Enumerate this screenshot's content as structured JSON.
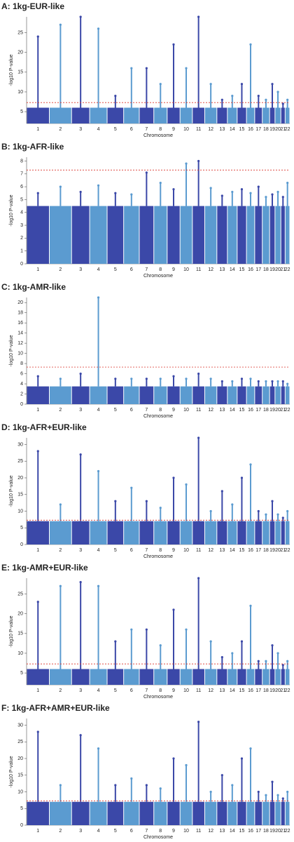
{
  "chart_data": [
    {
      "type": "manhattan",
      "title": "A: 1kg-EUR-like",
      "x_label": "Chromosome",
      "y_label": "-log10 P-value",
      "categories": [
        "1",
        "2",
        "3",
        "4",
        "5",
        "6",
        "7",
        "8",
        "9",
        "10",
        "11",
        "12",
        "13",
        "14",
        "15",
        "16",
        "17",
        "18",
        "19",
        "20",
        "21",
        "22"
      ],
      "bulk": [
        6,
        6,
        6,
        6,
        6,
        6,
        6,
        6,
        6,
        6,
        6,
        6,
        6,
        6,
        6,
        6,
        6,
        6,
        6,
        6,
        6,
        6
      ],
      "peaks": [
        24,
        27,
        29,
        26,
        9,
        16,
        16,
        12,
        22,
        16,
        29,
        12,
        8,
        9,
        12,
        22,
        9,
        8,
        12,
        10,
        7,
        8
      ],
      "ylim": [
        2,
        29
      ],
      "yticks": [
        5,
        10,
        15,
        20,
        25
      ],
      "threshold": 7.3,
      "colors": [
        "#3b48a8",
        "#5b9bd0"
      ],
      "threshold_color": "#d9342b"
    },
    {
      "type": "manhattan",
      "title": "B: 1kg-AFR-like",
      "x_label": "Chromosome",
      "y_label": "-log10 P-value",
      "categories": [
        "1",
        "2",
        "3",
        "4",
        "5",
        "6",
        "7",
        "8",
        "9",
        "10",
        "11",
        "12",
        "13",
        "14",
        "15",
        "16",
        "17",
        "18",
        "19",
        "20",
        "21",
        "22"
      ],
      "bulk": [
        4.5,
        4.5,
        4.5,
        4.5,
        4.5,
        4.5,
        4.5,
        4.5,
        4.5,
        4.5,
        4.5,
        4.5,
        4.5,
        4.5,
        4.5,
        4.5,
        4.5,
        4.5,
        4.5,
        4.5,
        4.5,
        4.5
      ],
      "peaks": [
        5.5,
        6.0,
        5.6,
        6.1,
        5.5,
        5.4,
        7.1,
        6.3,
        5.8,
        7.8,
        8.0,
        5.9,
        5.3,
        5.6,
        5.8,
        5.5,
        6.0,
        5.2,
        5.4,
        5.6,
        5.2,
        6.3
      ],
      "ylim": [
        0,
        8.3
      ],
      "yticks": [
        0,
        1,
        2,
        3,
        4,
        5,
        6,
        7,
        8
      ],
      "threshold": 7.3,
      "colors": [
        "#3b48a8",
        "#5b9bd0"
      ],
      "threshold_color": "#d9342b"
    },
    {
      "type": "manhattan",
      "title": "C: 1kg-AMR-like",
      "x_label": "Chromosome",
      "y_label": "-log10 P-value",
      "categories": [
        "1",
        "2",
        "3",
        "4",
        "5",
        "6",
        "7",
        "8",
        "9",
        "10",
        "11",
        "12",
        "13",
        "14",
        "15",
        "16",
        "17",
        "18",
        "19",
        "20",
        "21",
        "22"
      ],
      "bulk": [
        3.5,
        3.5,
        3.5,
        3.5,
        3.5,
        3.5,
        3.5,
        3.5,
        3.5,
        3.5,
        3.5,
        3.5,
        3.5,
        3.5,
        3.5,
        3.5,
        3.5,
        3.5,
        3.5,
        3.5,
        3.5,
        3.5
      ],
      "peaks": [
        5.5,
        5,
        6,
        21,
        5,
        5,
        5,
        5,
        5.5,
        5,
        6,
        5,
        4.5,
        4.5,
        5,
        5,
        4.5,
        4.5,
        4.5,
        4.5,
        4.5,
        4
      ],
      "ylim": [
        0,
        21
      ],
      "yticks": [
        0,
        2,
        4,
        6,
        8,
        10,
        12,
        14,
        16,
        18,
        20
      ],
      "threshold": 7.3,
      "colors": [
        "#3b48a8",
        "#5b9bd0"
      ],
      "threshold_color": "#d9342b"
    },
    {
      "type": "manhattan",
      "title": "D: 1kg-AFR+EUR-like",
      "x_label": "Chromosome",
      "y_label": "-log10 P-value",
      "categories": [
        "1",
        "2",
        "3",
        "4",
        "5",
        "6",
        "7",
        "8",
        "9",
        "10",
        "11",
        "12",
        "13",
        "14",
        "15",
        "16",
        "17",
        "18",
        "19",
        "20",
        "21",
        "22"
      ],
      "bulk": [
        7,
        7,
        7,
        7,
        7,
        7,
        7,
        7,
        7,
        7,
        7,
        7,
        7,
        7,
        7,
        7,
        7,
        7,
        7,
        7,
        7,
        7
      ],
      "peaks": [
        28,
        12,
        27,
        22,
        13,
        17,
        13,
        11,
        20,
        18,
        32,
        10,
        16,
        12,
        20,
        24,
        10,
        9,
        13,
        9,
        8,
        10
      ],
      "ylim": [
        0,
        32
      ],
      "yticks": [
        0,
        5,
        10,
        15,
        20,
        25,
        30
      ],
      "threshold": 7.3,
      "colors": [
        "#3b48a8",
        "#5b9bd0"
      ],
      "threshold_color": "#d9342b"
    },
    {
      "type": "manhattan",
      "title": "E: 1kg-AMR+EUR-like",
      "x_label": "Chromosome",
      "y_label": "-log10 P-value",
      "categories": [
        "1",
        "2",
        "3",
        "4",
        "5",
        "6",
        "7",
        "8",
        "9",
        "10",
        "11",
        "12",
        "13",
        "14",
        "15",
        "16",
        "17",
        "18",
        "19",
        "20",
        "21",
        "22"
      ],
      "bulk": [
        6,
        6,
        6,
        6,
        6,
        6,
        6,
        6,
        6,
        6,
        6,
        6,
        6,
        6,
        6,
        6,
        6,
        6,
        6,
        6,
        6,
        6
      ],
      "peaks": [
        23,
        27,
        28,
        27,
        13,
        16,
        16,
        12,
        21,
        16,
        29,
        13,
        9,
        10,
        13,
        22,
        8,
        8,
        12,
        10,
        7,
        8
      ],
      "ylim": [
        2,
        29
      ],
      "yticks": [
        5,
        10,
        15,
        20,
        25
      ],
      "threshold": 7.3,
      "colors": [
        "#3b48a8",
        "#5b9bd0"
      ],
      "threshold_color": "#d9342b"
    },
    {
      "type": "manhattan",
      "title": "F: 1kg-AFR+AMR+EUR-like",
      "x_label": "Chromosome",
      "y_label": "-log10 P-value",
      "categories": [
        "1",
        "2",
        "3",
        "4",
        "5",
        "6",
        "7",
        "8",
        "9",
        "10",
        "11",
        "12",
        "13",
        "14",
        "15",
        "16",
        "17",
        "18",
        "19",
        "20",
        "21",
        "22"
      ],
      "bulk": [
        7,
        7,
        7,
        7,
        7,
        7,
        7,
        7,
        7,
        7,
        7,
        7,
        7,
        7,
        7,
        7,
        7,
        7,
        7,
        7,
        7,
        7
      ],
      "peaks": [
        28,
        12,
        27,
        23,
        12,
        14,
        12,
        11,
        20,
        18,
        31,
        10,
        15,
        12,
        20,
        23,
        10,
        9,
        13,
        9,
        8,
        10
      ],
      "ylim": [
        0,
        32
      ],
      "yticks": [
        0,
        5,
        10,
        15,
        20,
        25,
        30
      ],
      "threshold": 7.3,
      "colors": [
        "#3b48a8",
        "#5b9bd0"
      ],
      "threshold_color": "#d9342b"
    }
  ]
}
